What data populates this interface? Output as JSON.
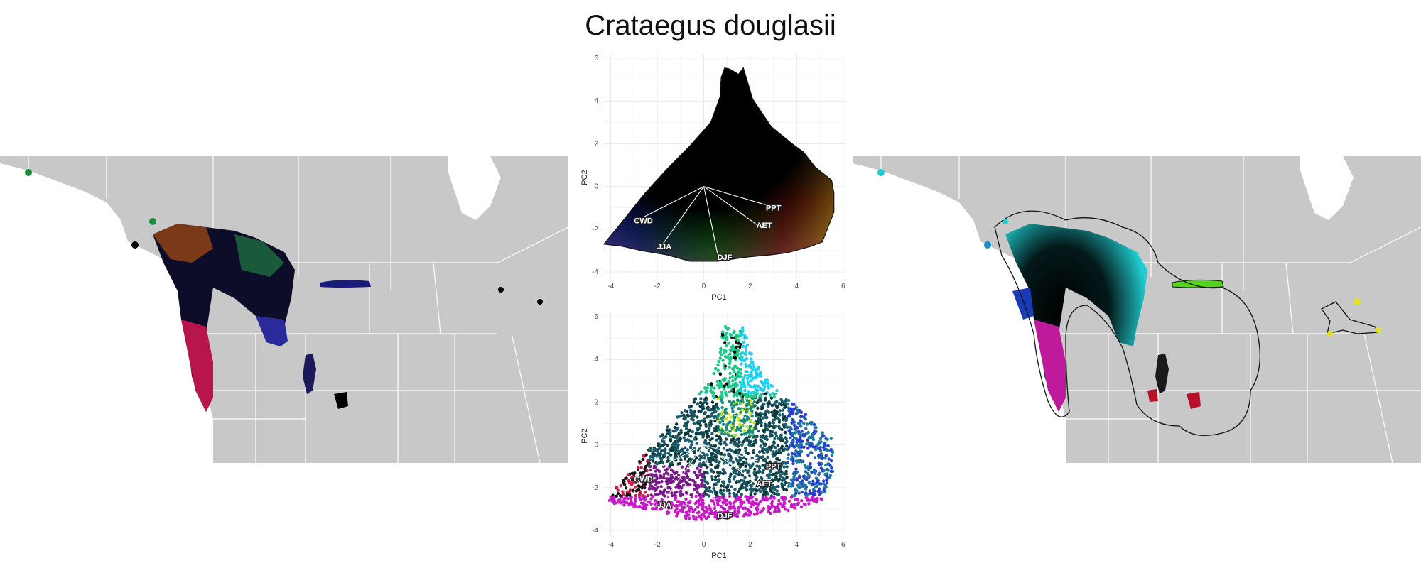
{
  "title": "Crataegus douglasii",
  "chart_data": [
    {
      "type": "map",
      "panel": "left-map",
      "background_color": "#c8c8c8",
      "border_color": "#ffffff",
      "description_colors": [
        "#000000",
        "#1a1a8c",
        "#cc1a55",
        "#1a8c3c"
      ]
    },
    {
      "type": "scatter",
      "panel": "pca-top",
      "xlabel": "PC1",
      "ylabel": "PC2",
      "xlim": [
        -4.3,
        6.1
      ],
      "ylim": [
        -4.3,
        6.2
      ],
      "xticks": [
        -4,
        -2,
        0,
        2,
        4,
        6
      ],
      "yticks": [
        -4,
        -2,
        0,
        2,
        4,
        6
      ],
      "xtick_labels": [
        "-4",
        "-2",
        "0",
        "2",
        "4",
        "6"
      ],
      "ytick_labels": [
        "-4",
        "-2",
        "0",
        "2",
        "4",
        "6"
      ],
      "grid": true,
      "loadings": [
        {
          "name": "CWD",
          "end": [
            -2.9,
            -1.6
          ],
          "label": [
            -2.6,
            -1.6
          ]
        },
        {
          "name": "JJA",
          "end": [
            -1.9,
            -2.9
          ],
          "label": [
            -1.7,
            -2.8
          ]
        },
        {
          "name": "DJF",
          "end": [
            0.6,
            -3.2
          ],
          "label": [
            0.9,
            -3.3
          ]
        },
        {
          "name": "AET",
          "end": [
            2.3,
            -1.8
          ],
          "label": [
            2.6,
            -1.8
          ]
        },
        {
          "name": "PPT",
          "end": [
            3.1,
            -1.0
          ],
          "label": [
            3.0,
            -1.0
          ]
        }
      ],
      "hull": [
        [
          -4.3,
          -2.7
        ],
        [
          -4.0,
          -2.3
        ],
        [
          -3.4,
          -1.5
        ],
        [
          -2.6,
          -0.4
        ],
        [
          -1.6,
          0.8
        ],
        [
          -0.6,
          1.9
        ],
        [
          0.3,
          3.0
        ],
        [
          0.7,
          4.2
        ],
        [
          0.75,
          5.1
        ],
        [
          0.9,
          5.55
        ],
        [
          1.1,
          5.5
        ],
        [
          1.5,
          5.25
        ],
        [
          1.7,
          5.55
        ],
        [
          1.8,
          5.2
        ],
        [
          2.1,
          4.1
        ],
        [
          2.9,
          2.8
        ],
        [
          3.8,
          2.0
        ],
        [
          4.3,
          1.6
        ],
        [
          4.8,
          0.9
        ],
        [
          5.5,
          0.3
        ],
        [
          5.6,
          -0.3
        ],
        [
          5.6,
          -1.2
        ],
        [
          5.5,
          -1.5
        ],
        [
          5.1,
          -2.6
        ],
        [
          4.6,
          -2.8
        ],
        [
          3.6,
          -3.1
        ],
        [
          2.9,
          -3.2
        ],
        [
          1.9,
          -3.3
        ],
        [
          0.6,
          -3.5
        ],
        [
          -0.6,
          -3.5
        ],
        [
          -1.6,
          -3.2
        ],
        [
          -2.7,
          -3.0
        ],
        [
          -3.5,
          -2.8
        ]
      ]
    },
    {
      "type": "scatter",
      "panel": "pca-bottom",
      "xlabel": "PC1",
      "ylabel": "PC2",
      "xlim": [
        -4.3,
        6.1
      ],
      "ylim": [
        -4.3,
        6.2
      ],
      "xticks": [
        -4,
        -2,
        0,
        2,
        4,
        6
      ],
      "yticks": [
        -4,
        -2,
        0,
        2,
        4,
        6
      ],
      "xtick_labels": [
        "-4",
        "-2",
        "0",
        "2",
        "4",
        "6"
      ],
      "ytick_labels": [
        "-4",
        "-2",
        "0",
        "2",
        "4",
        "6"
      ],
      "grid": true,
      "loadings": [
        {
          "name": "CWD",
          "end": [
            -2.9,
            -1.6
          ],
          "label": [
            -2.6,
            -1.6
          ]
        },
        {
          "name": "JJA",
          "end": [
            -1.9,
            -2.9
          ],
          "label": [
            -1.7,
            -2.8
          ]
        },
        {
          "name": "DJF",
          "end": [
            0.6,
            -3.2
          ],
          "label": [
            0.9,
            -3.3
          ]
        },
        {
          "name": "AET",
          "end": [
            2.3,
            -1.8
          ],
          "label": [
            2.6,
            -1.8
          ]
        },
        {
          "name": "PPT",
          "end": [
            3.1,
            -1.0
          ],
          "label": [
            3.0,
            -1.0
          ]
        }
      ]
    },
    {
      "type": "map",
      "panel": "right-map",
      "background_color": "#c8c8c8",
      "border_color": "#ffffff",
      "description_colors": [
        "#1fcdd0",
        "#000000",
        "#c01a9c",
        "#52d51a",
        "#e3e31a",
        "#b8102a"
      ]
    }
  ]
}
